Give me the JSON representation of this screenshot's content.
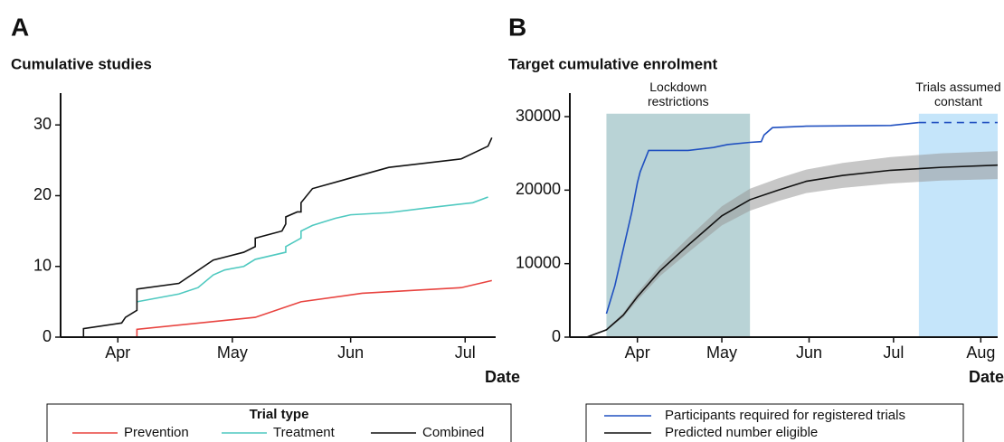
{
  "chart_data": [
    {
      "type": "line",
      "panel_label": "A",
      "title": "Cumulative studies",
      "xlabel": "Date",
      "xlim": [
        16,
        130
      ],
      "xticks": [
        {
          "value": 31,
          "label": "Apr"
        },
        {
          "value": 61,
          "label": "May"
        },
        {
          "value": 92,
          "label": "Jun"
        },
        {
          "value": 122,
          "label": "Jul"
        }
      ],
      "ylim": [
        0,
        34.5
      ],
      "yticks": [
        0,
        10,
        20,
        30
      ],
      "legend": {
        "title": "Trial type",
        "position": "bottom"
      },
      "series": [
        {
          "name": "Prevention",
          "color": "#e8433f",
          "x": [
            36,
            36,
            67,
            79,
            95,
            121,
            129
          ],
          "values": [
            0,
            1.1,
            2.8,
            5,
            6.2,
            7,
            8
          ]
        },
        {
          "name": "Treatment",
          "color": "#4fc9c0",
          "x": [
            36,
            47,
            52,
            56,
            59,
            64,
            67,
            75,
            75,
            79,
            79,
            82,
            88,
            92,
            102,
            111,
            124,
            128
          ],
          "values": [
            5,
            6.1,
            7,
            8.8,
            9.5,
            10,
            11,
            12,
            12.8,
            14,
            15,
            15.8,
            16.8,
            17.3,
            17.6,
            18.2,
            19,
            19.8
          ]
        },
        {
          "name": "Combined",
          "color": "#111111",
          "x": [
            22,
            22,
            32,
            33,
            36,
            36,
            47,
            56,
            64,
            67,
            67,
            74,
            75,
            75,
            78,
            79,
            79,
            82,
            102,
            121,
            128,
            129
          ],
          "values": [
            0,
            1.2,
            2,
            2.8,
            3.8,
            6.8,
            7.6,
            10.9,
            12,
            12.8,
            14,
            15,
            16,
            17,
            17.7,
            17.7,
            19,
            21,
            24,
            25.2,
            27,
            28.2
          ]
        }
      ]
    },
    {
      "type": "line",
      "panel_label": "B",
      "title": "Target cumulative enrolment",
      "xlabel": "Date",
      "xlim": [
        7,
        159
      ],
      "xticks": [
        {
          "value": 31,
          "label": "Apr"
        },
        {
          "value": 61,
          "label": "May"
        },
        {
          "value": 92,
          "label": "Jun"
        },
        {
          "value": 122,
          "label": "Jul"
        },
        {
          "value": 153,
          "label": "Aug"
        }
      ],
      "ylim": [
        0,
        33200
      ],
      "yticks": [
        0,
        10000,
        20000,
        30000
      ],
      "legend": {
        "position": "bottom"
      },
      "shaded_regions": [
        {
          "label": "Lockdown restrictions",
          "x": [
            20,
            71
          ],
          "y": [
            0,
            30400
          ],
          "color": "#b9d3d6"
        },
        {
          "label": "Trials assumed constant",
          "x": [
            131,
            159
          ],
          "y": [
            0,
            30400
          ],
          "color": "#c5e5fa"
        }
      ],
      "series": [
        {
          "name": "Participants required for registered trials",
          "color": "#2050c0",
          "x": [
            20,
            23,
            26,
            29,
            31,
            32,
            35,
            49,
            58,
            63,
            71,
            75,
            76,
            79,
            91,
            121,
            131,
            159
          ],
          "values": [
            3200,
            7000,
            12000,
            17000,
            21000,
            22500,
            25400,
            25400,
            25800,
            26200,
            26500,
            26600,
            27500,
            28500,
            28700,
            28800,
            29200,
            29200
          ]
        },
        {
          "name": "Predicted number eligible",
          "color": "#111111",
          "band_color": "#999999",
          "x": [
            13,
            20,
            26,
            31,
            39,
            49,
            61,
            71,
            81,
            91,
            104,
            121,
            139,
            159
          ],
          "values": [
            0,
            1000,
            3000,
            5500,
            9000,
            12500,
            16500,
            18700,
            20000,
            21200,
            22000,
            22700,
            23100,
            23400
          ],
          "lower": [
            0,
            900,
            2700,
            5000,
            8300,
            11500,
            15200,
            17200,
            18500,
            19600,
            20300,
            20900,
            21300,
            21500
          ],
          "upper": [
            0,
            1100,
            3300,
            6000,
            9700,
            13500,
            17800,
            20200,
            21600,
            22800,
            23700,
            24500,
            25000,
            25300
          ]
        }
      ]
    }
  ]
}
